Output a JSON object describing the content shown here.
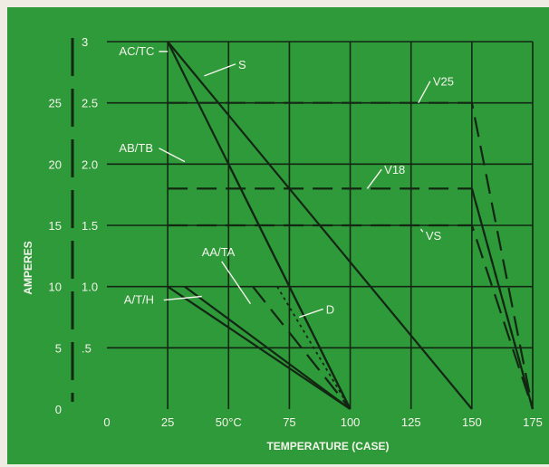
{
  "colors": {
    "background": "#2f9a3a",
    "grid": "#122612",
    "curve": "#132613",
    "text": "#f4f4ec",
    "page_margin": "#efece4"
  },
  "chart_data": {
    "type": "line",
    "title": "",
    "xlabel": "TEMPERATURE (CASE)",
    "ylabel": "AMPERES",
    "xlim": [
      0,
      175
    ],
    "ylim": [
      0,
      3
    ],
    "grid": true,
    "x_tick_labels": [
      {
        "value": 0,
        "label": "0"
      },
      {
        "value": 25,
        "label": "25"
      },
      {
        "value": 50,
        "label": "50°C"
      },
      {
        "value": 75,
        "label": "75"
      },
      {
        "value": 100,
        "label": "100"
      },
      {
        "value": 125,
        "label": "125"
      },
      {
        "value": 150,
        "label": "150"
      },
      {
        "value": 175,
        "label": "175"
      }
    ],
    "y_tick_labels_inner": [
      {
        "value": 0.5,
        "label": ".5"
      },
      {
        "value": 1.0,
        "label": "1.0"
      },
      {
        "value": 1.5,
        "label": "1.5"
      },
      {
        "value": 2.0,
        "label": "2.0"
      },
      {
        "value": 2.5,
        "label": "2.5"
      },
      {
        "value": 3.0,
        "label": "3"
      }
    ],
    "y_tick_labels_outer": [
      {
        "value": 0,
        "label": "0"
      },
      {
        "value": 0.5,
        "label": "5"
      },
      {
        "value": 1.0,
        "label": "10"
      },
      {
        "value": 1.5,
        "label": "15"
      },
      {
        "value": 2.0,
        "label": "20"
      },
      {
        "value": 2.5,
        "label": "25"
      }
    ],
    "series": [
      {
        "name": "AC/TC",
        "style": "solid",
        "x": [
          25,
          100
        ],
        "y": [
          3.0,
          0
        ]
      },
      {
        "name": "S",
        "style": "solid",
        "x": [
          25,
          150
        ],
        "y": [
          3.0,
          0
        ]
      },
      {
        "name": "AB/TB",
        "style": "solid",
        "x": [
          50,
          100
        ],
        "y": [
          2.0,
          0
        ]
      },
      {
        "name": "A/T/H",
        "style": "solid",
        "x": [
          32,
          100
        ],
        "y": [
          1.0,
          0
        ]
      },
      {
        "name": "A/T/H",
        "style": "solid",
        "x": [
          25,
          100
        ],
        "y": [
          1.0,
          0
        ]
      },
      {
        "name": "AA/TA",
        "style": "dashed",
        "x": [
          60,
          100
        ],
        "y": [
          1.0,
          0
        ]
      },
      {
        "name": "D",
        "style": "dotted",
        "x": [
          70,
          100
        ],
        "y": [
          1.0,
          0
        ]
      },
      {
        "name": "V25",
        "style": "dashed",
        "x": [
          25,
          150,
          175
        ],
        "y": [
          2.5,
          2.5,
          0
        ]
      },
      {
        "name": "V18",
        "style": "dashed",
        "x": [
          25,
          150,
          175
        ],
        "y": [
          1.8,
          1.8,
          0
        ]
      },
      {
        "name": "VS",
        "style": "dashed",
        "x": [
          25,
          150,
          175
        ],
        "y": [
          1.5,
          1.5,
          0
        ]
      },
      {
        "name": "D",
        "style": "dashed",
        "x": [
          150,
          175
        ],
        "y": [
          1.8,
          0
        ]
      }
    ],
    "annotations": [
      {
        "label": "AC/TC",
        "x": 25,
        "y": 2.92,
        "text_x": 5,
        "text_y": 2.89,
        "anchor": "start"
      },
      {
        "label": "S",
        "x": 40,
        "y": 2.72,
        "text_x": 54,
        "text_y": 2.78,
        "anchor": "start"
      },
      {
        "label": "V25",
        "x": 128,
        "y": 2.5,
        "text_x": 134,
        "text_y": 2.64,
        "anchor": "start"
      },
      {
        "label": "AB/TB",
        "x": 32,
        "y": 2.02,
        "text_x": 5,
        "text_y": 2.1,
        "anchor": "start"
      },
      {
        "label": "V18",
        "x": 107,
        "y": 1.8,
        "text_x": 114,
        "text_y": 1.92,
        "anchor": "start"
      },
      {
        "label": "VS",
        "x": 129,
        "y": 1.47,
        "text_x": 131,
        "text_y": 1.38,
        "anchor": "start"
      },
      {
        "label": "AA/TA",
        "x": 59,
        "y": 0.86,
        "text_x": 39,
        "text_y": 1.25,
        "anchor": "start"
      },
      {
        "label": "D",
        "x": 79,
        "y": 0.75,
        "text_x": 90,
        "text_y": 0.78,
        "anchor": "start"
      },
      {
        "label": "A/T/H",
        "x": 39,
        "y": 0.92,
        "text_x": 7,
        "text_y": 0.86,
        "anchor": "start"
      }
    ]
  }
}
